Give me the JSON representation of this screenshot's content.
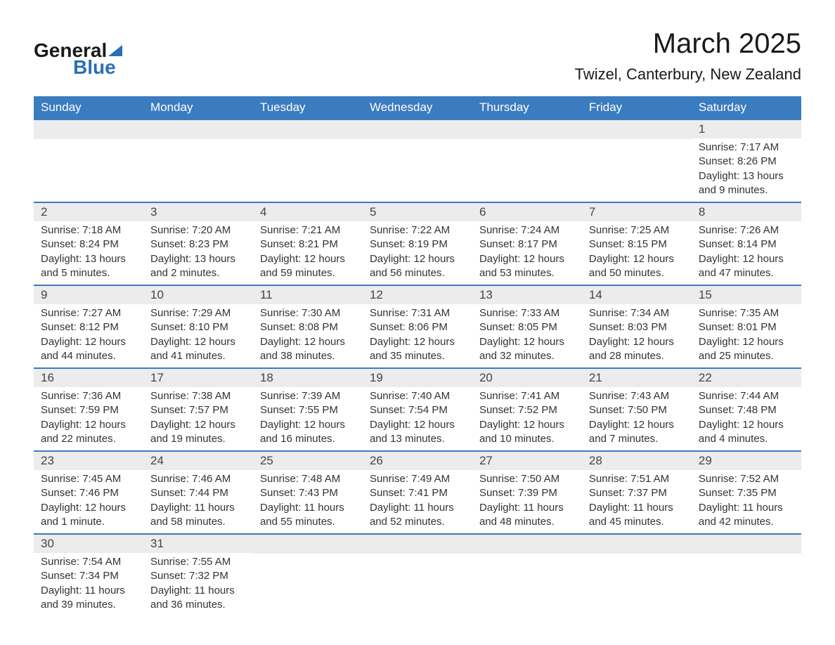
{
  "logo": {
    "text_general": "General",
    "text_blue": "Blue"
  },
  "header": {
    "month_title": "March 2025",
    "location": "Twizel, Canterbury, New Zealand"
  },
  "colors": {
    "header_bar": "#3b7bbf",
    "day_number_bg": "#ececec",
    "week_border": "#3b7bbf",
    "logo_accent": "#2a6eb5",
    "text_primary": "#333333",
    "text_white": "#ffffff",
    "background": "#ffffff"
  },
  "typography": {
    "title_fontsize": 40,
    "location_fontsize": 22,
    "day_header_fontsize": 17,
    "day_number_fontsize": 17,
    "cell_fontsize": 15
  },
  "day_names": [
    "Sunday",
    "Monday",
    "Tuesday",
    "Wednesday",
    "Thursday",
    "Friday",
    "Saturday"
  ],
  "weeks": [
    [
      null,
      null,
      null,
      null,
      null,
      null,
      {
        "day": "1",
        "sunrise": "Sunrise: 7:17 AM",
        "sunset": "Sunset: 8:26 PM",
        "daylight1": "Daylight: 13 hours",
        "daylight2": "and 9 minutes."
      }
    ],
    [
      {
        "day": "2",
        "sunrise": "Sunrise: 7:18 AM",
        "sunset": "Sunset: 8:24 PM",
        "daylight1": "Daylight: 13 hours",
        "daylight2": "and 5 minutes."
      },
      {
        "day": "3",
        "sunrise": "Sunrise: 7:20 AM",
        "sunset": "Sunset: 8:23 PM",
        "daylight1": "Daylight: 13 hours",
        "daylight2": "and 2 minutes."
      },
      {
        "day": "4",
        "sunrise": "Sunrise: 7:21 AM",
        "sunset": "Sunset: 8:21 PM",
        "daylight1": "Daylight: 12 hours",
        "daylight2": "and 59 minutes."
      },
      {
        "day": "5",
        "sunrise": "Sunrise: 7:22 AM",
        "sunset": "Sunset: 8:19 PM",
        "daylight1": "Daylight: 12 hours",
        "daylight2": "and 56 minutes."
      },
      {
        "day": "6",
        "sunrise": "Sunrise: 7:24 AM",
        "sunset": "Sunset: 8:17 PM",
        "daylight1": "Daylight: 12 hours",
        "daylight2": "and 53 minutes."
      },
      {
        "day": "7",
        "sunrise": "Sunrise: 7:25 AM",
        "sunset": "Sunset: 8:15 PM",
        "daylight1": "Daylight: 12 hours",
        "daylight2": "and 50 minutes."
      },
      {
        "day": "8",
        "sunrise": "Sunrise: 7:26 AM",
        "sunset": "Sunset: 8:14 PM",
        "daylight1": "Daylight: 12 hours",
        "daylight2": "and 47 minutes."
      }
    ],
    [
      {
        "day": "9",
        "sunrise": "Sunrise: 7:27 AM",
        "sunset": "Sunset: 8:12 PM",
        "daylight1": "Daylight: 12 hours",
        "daylight2": "and 44 minutes."
      },
      {
        "day": "10",
        "sunrise": "Sunrise: 7:29 AM",
        "sunset": "Sunset: 8:10 PM",
        "daylight1": "Daylight: 12 hours",
        "daylight2": "and 41 minutes."
      },
      {
        "day": "11",
        "sunrise": "Sunrise: 7:30 AM",
        "sunset": "Sunset: 8:08 PM",
        "daylight1": "Daylight: 12 hours",
        "daylight2": "and 38 minutes."
      },
      {
        "day": "12",
        "sunrise": "Sunrise: 7:31 AM",
        "sunset": "Sunset: 8:06 PM",
        "daylight1": "Daylight: 12 hours",
        "daylight2": "and 35 minutes."
      },
      {
        "day": "13",
        "sunrise": "Sunrise: 7:33 AM",
        "sunset": "Sunset: 8:05 PM",
        "daylight1": "Daylight: 12 hours",
        "daylight2": "and 32 minutes."
      },
      {
        "day": "14",
        "sunrise": "Sunrise: 7:34 AM",
        "sunset": "Sunset: 8:03 PM",
        "daylight1": "Daylight: 12 hours",
        "daylight2": "and 28 minutes."
      },
      {
        "day": "15",
        "sunrise": "Sunrise: 7:35 AM",
        "sunset": "Sunset: 8:01 PM",
        "daylight1": "Daylight: 12 hours",
        "daylight2": "and 25 minutes."
      }
    ],
    [
      {
        "day": "16",
        "sunrise": "Sunrise: 7:36 AM",
        "sunset": "Sunset: 7:59 PM",
        "daylight1": "Daylight: 12 hours",
        "daylight2": "and 22 minutes."
      },
      {
        "day": "17",
        "sunrise": "Sunrise: 7:38 AM",
        "sunset": "Sunset: 7:57 PM",
        "daylight1": "Daylight: 12 hours",
        "daylight2": "and 19 minutes."
      },
      {
        "day": "18",
        "sunrise": "Sunrise: 7:39 AM",
        "sunset": "Sunset: 7:55 PM",
        "daylight1": "Daylight: 12 hours",
        "daylight2": "and 16 minutes."
      },
      {
        "day": "19",
        "sunrise": "Sunrise: 7:40 AM",
        "sunset": "Sunset: 7:54 PM",
        "daylight1": "Daylight: 12 hours",
        "daylight2": "and 13 minutes."
      },
      {
        "day": "20",
        "sunrise": "Sunrise: 7:41 AM",
        "sunset": "Sunset: 7:52 PM",
        "daylight1": "Daylight: 12 hours",
        "daylight2": "and 10 minutes."
      },
      {
        "day": "21",
        "sunrise": "Sunrise: 7:43 AM",
        "sunset": "Sunset: 7:50 PM",
        "daylight1": "Daylight: 12 hours",
        "daylight2": "and 7 minutes."
      },
      {
        "day": "22",
        "sunrise": "Sunrise: 7:44 AM",
        "sunset": "Sunset: 7:48 PM",
        "daylight1": "Daylight: 12 hours",
        "daylight2": "and 4 minutes."
      }
    ],
    [
      {
        "day": "23",
        "sunrise": "Sunrise: 7:45 AM",
        "sunset": "Sunset: 7:46 PM",
        "daylight1": "Daylight: 12 hours",
        "daylight2": "and 1 minute."
      },
      {
        "day": "24",
        "sunrise": "Sunrise: 7:46 AM",
        "sunset": "Sunset: 7:44 PM",
        "daylight1": "Daylight: 11 hours",
        "daylight2": "and 58 minutes."
      },
      {
        "day": "25",
        "sunrise": "Sunrise: 7:48 AM",
        "sunset": "Sunset: 7:43 PM",
        "daylight1": "Daylight: 11 hours",
        "daylight2": "and 55 minutes."
      },
      {
        "day": "26",
        "sunrise": "Sunrise: 7:49 AM",
        "sunset": "Sunset: 7:41 PM",
        "daylight1": "Daylight: 11 hours",
        "daylight2": "and 52 minutes."
      },
      {
        "day": "27",
        "sunrise": "Sunrise: 7:50 AM",
        "sunset": "Sunset: 7:39 PM",
        "daylight1": "Daylight: 11 hours",
        "daylight2": "and 48 minutes."
      },
      {
        "day": "28",
        "sunrise": "Sunrise: 7:51 AM",
        "sunset": "Sunset: 7:37 PM",
        "daylight1": "Daylight: 11 hours",
        "daylight2": "and 45 minutes."
      },
      {
        "day": "29",
        "sunrise": "Sunrise: 7:52 AM",
        "sunset": "Sunset: 7:35 PM",
        "daylight1": "Daylight: 11 hours",
        "daylight2": "and 42 minutes."
      }
    ],
    [
      {
        "day": "30",
        "sunrise": "Sunrise: 7:54 AM",
        "sunset": "Sunset: 7:34 PM",
        "daylight1": "Daylight: 11 hours",
        "daylight2": "and 39 minutes."
      },
      {
        "day": "31",
        "sunrise": "Sunrise: 7:55 AM",
        "sunset": "Sunset: 7:32 PM",
        "daylight1": "Daylight: 11 hours",
        "daylight2": "and 36 minutes."
      },
      null,
      null,
      null,
      null,
      null
    ]
  ]
}
